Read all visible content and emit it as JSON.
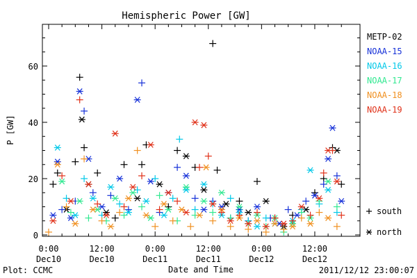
{
  "chart_data": {
    "type": "scatter",
    "title": "Hemispheric Power [GW]",
    "ylabel": "P [GW]",
    "xlabel": "Date and Time",
    "ylim": [
      0,
      75
    ],
    "yticks": [
      0,
      20,
      40,
      60
    ],
    "xlim": [
      0,
      68
    ],
    "x_units": "hours since 2011-12-10 00:00",
    "xticks": [
      {
        "x": 0,
        "time": "0:00",
        "date": "Dec10"
      },
      {
        "x": 12,
        "time": "12:00",
        "date": "Dec10"
      },
      {
        "x": 24,
        "time": "0:00",
        "date": "Dec11"
      },
      {
        "x": 36,
        "time": "12:00",
        "date": "Dec11"
      },
      {
        "x": 48,
        "time": "0:00",
        "date": "Dec12"
      },
      {
        "x": 60,
        "time": "12:00",
        "date": "Dec12"
      }
    ],
    "legend_position": "right",
    "marker_legend": [
      {
        "symbol": "+",
        "label": "south"
      },
      {
        "symbol": "*",
        "label": "north"
      }
    ],
    "series": [
      {
        "name": "METP-02",
        "color": "#000000",
        "points": [
          [
            1,
            18,
            "south"
          ],
          [
            2,
            22,
            "south"
          ],
          [
            4,
            9,
            "north"
          ],
          [
            6,
            26,
            "south"
          ],
          [
            7,
            56,
            "south"
          ],
          [
            7.5,
            41,
            "north"
          ],
          [
            8,
            31,
            "south"
          ],
          [
            9,
            18,
            "north"
          ],
          [
            11,
            22,
            "south"
          ],
          [
            13,
            8,
            "north"
          ],
          [
            15,
            6,
            "south"
          ],
          [
            17,
            25,
            "south"
          ],
          [
            20,
            13,
            "north"
          ],
          [
            21,
            25,
            "south"
          ],
          [
            22,
            32,
            "south"
          ],
          [
            25,
            18,
            "north"
          ],
          [
            27,
            10,
            "south"
          ],
          [
            29,
            30,
            "south"
          ],
          [
            31,
            28,
            "north"
          ],
          [
            33,
            24,
            "south"
          ],
          [
            35,
            16,
            "north"
          ],
          [
            37,
            68,
            "south"
          ],
          [
            38,
            23,
            "south"
          ],
          [
            40,
            11,
            "north"
          ],
          [
            43,
            12,
            "south"
          ],
          [
            45,
            8,
            "north"
          ],
          [
            47,
            19,
            "south"
          ],
          [
            49,
            12,
            "north"
          ],
          [
            51,
            6,
            "south"
          ],
          [
            53,
            3,
            "north"
          ],
          [
            55,
            7,
            "south"
          ],
          [
            58,
            9,
            "north"
          ],
          [
            60,
            15,
            "south"
          ],
          [
            62,
            20,
            "south"
          ],
          [
            64,
            31,
            "south"
          ],
          [
            65,
            30,
            "north"
          ],
          [
            66,
            18,
            "south"
          ]
        ]
      },
      {
        "name": "NOAA-15",
        "color": "#1530d8",
        "points": [
          [
            1,
            7,
            "north"
          ],
          [
            2,
            26,
            "north"
          ],
          [
            3,
            9,
            "south"
          ],
          [
            5,
            6,
            "north"
          ],
          [
            6,
            12,
            "south"
          ],
          [
            7,
            51,
            "north"
          ],
          [
            8,
            44,
            "south"
          ],
          [
            9,
            27,
            "north"
          ],
          [
            10,
            15,
            "south"
          ],
          [
            12,
            10,
            "north"
          ],
          [
            14,
            14,
            "south"
          ],
          [
            16,
            20,
            "north"
          ],
          [
            18,
            9,
            "south"
          ],
          [
            20,
            48,
            "north"
          ],
          [
            21,
            54,
            "south"
          ],
          [
            23,
            19,
            "north"
          ],
          [
            25,
            8,
            "south"
          ],
          [
            27,
            15,
            "north"
          ],
          [
            29,
            24,
            "south"
          ],
          [
            31,
            21,
            "north"
          ],
          [
            33,
            13,
            "south"
          ],
          [
            35,
            9,
            "north"
          ],
          [
            37,
            12,
            "south"
          ],
          [
            39,
            10,
            "north"
          ],
          [
            41,
            6,
            "south"
          ],
          [
            43,
            9,
            "north"
          ],
          [
            45,
            5,
            "south"
          ],
          [
            47,
            10,
            "north"
          ],
          [
            50,
            6,
            "south"
          ],
          [
            52,
            4,
            "north"
          ],
          [
            54,
            9,
            "south"
          ],
          [
            56,
            7,
            "north"
          ],
          [
            58,
            12,
            "south"
          ],
          [
            60,
            14,
            "north"
          ],
          [
            62,
            18,
            "south"
          ],
          [
            63,
            27,
            "north"
          ],
          [
            64,
            38,
            "north"
          ],
          [
            65,
            21,
            "south"
          ],
          [
            66,
            12,
            "north"
          ]
        ]
      },
      {
        "name": "NOAA-16",
        "color": "#00c8e8",
        "points": [
          [
            2,
            31,
            "north"
          ],
          [
            4,
            13,
            "south"
          ],
          [
            6,
            7,
            "north"
          ],
          [
            8,
            20,
            "south"
          ],
          [
            10,
            13,
            "north"
          ],
          [
            12,
            7,
            "south"
          ],
          [
            14,
            17,
            "north"
          ],
          [
            16,
            11,
            "south"
          ],
          [
            18,
            8,
            "north"
          ],
          [
            20,
            16,
            "south"
          ],
          [
            22,
            12,
            "north"
          ],
          [
            24,
            20,
            "south"
          ],
          [
            26,
            7,
            "north"
          ],
          [
            28,
            13,
            "south"
          ],
          [
            29.5,
            34,
            "south"
          ],
          [
            31,
            16,
            "north"
          ],
          [
            33,
            9,
            "south"
          ],
          [
            35,
            18,
            "north"
          ],
          [
            37,
            11,
            "south"
          ],
          [
            39,
            7,
            "north"
          ],
          [
            41,
            13,
            "south"
          ],
          [
            43,
            8,
            "north"
          ],
          [
            45,
            5,
            "south"
          ],
          [
            47,
            3,
            "north"
          ],
          [
            49,
            6,
            "south"
          ],
          [
            51,
            4,
            "north"
          ],
          [
            53,
            2,
            "south"
          ],
          [
            55,
            5,
            "north"
          ],
          [
            57,
            9,
            "south"
          ],
          [
            59,
            23,
            "north"
          ],
          [
            61,
            11,
            "south"
          ],
          [
            63,
            16,
            "north"
          ],
          [
            65,
            8,
            "south"
          ]
        ]
      },
      {
        "name": "NOAA-17",
        "color": "#30e890",
        "points": [
          [
            3,
            19,
            "north"
          ],
          [
            5,
            8,
            "south"
          ],
          [
            7,
            12,
            "north"
          ],
          [
            9,
            6,
            "south"
          ],
          [
            11,
            9,
            "north"
          ],
          [
            13,
            5,
            "south"
          ],
          [
            15,
            13,
            "north"
          ],
          [
            17,
            7,
            "south"
          ],
          [
            19,
            15,
            "north"
          ],
          [
            21,
            10,
            "south"
          ],
          [
            23,
            6,
            "north"
          ],
          [
            25,
            14,
            "south"
          ],
          [
            27,
            9,
            "north"
          ],
          [
            29,
            5,
            "south"
          ],
          [
            31,
            17,
            "north"
          ],
          [
            33,
            7,
            "south"
          ],
          [
            35,
            12,
            "north"
          ],
          [
            37,
            8,
            "south"
          ],
          [
            39,
            15,
            "north"
          ],
          [
            41,
            6,
            "south"
          ],
          [
            43,
            10,
            "north"
          ],
          [
            45,
            4,
            "south"
          ],
          [
            47,
            7,
            "north"
          ],
          [
            49,
            3,
            "south"
          ],
          [
            51,
            6,
            "north"
          ],
          [
            53,
            1,
            "south"
          ],
          [
            55,
            4,
            "north"
          ],
          [
            57,
            8,
            "south"
          ],
          [
            59,
            6,
            "north"
          ],
          [
            61,
            12,
            "south"
          ],
          [
            63,
            19,
            "north"
          ],
          [
            65,
            10,
            "south"
          ]
        ]
      },
      {
        "name": "NOAA-18",
        "color": "#f09020",
        "points": [
          [
            0,
            1,
            "south"
          ],
          [
            2,
            25,
            "north"
          ],
          [
            4,
            10,
            "south"
          ],
          [
            6,
            4,
            "north"
          ],
          [
            8,
            27,
            "south"
          ],
          [
            10,
            9,
            "north"
          ],
          [
            12,
            5,
            "south"
          ],
          [
            14,
            3,
            "north"
          ],
          [
            16,
            8,
            "south"
          ],
          [
            18,
            13,
            "north"
          ],
          [
            20,
            30,
            "south"
          ],
          [
            22,
            7,
            "north"
          ],
          [
            24,
            3,
            "south"
          ],
          [
            26,
            11,
            "north"
          ],
          [
            28,
            5,
            "south"
          ],
          [
            30,
            9,
            "north"
          ],
          [
            32,
            3,
            "south"
          ],
          [
            34,
            7,
            "north"
          ],
          [
            35.5,
            24,
            "north"
          ],
          [
            37,
            5,
            "south"
          ],
          [
            39,
            9,
            "north"
          ],
          [
            41,
            3,
            "south"
          ],
          [
            43,
            6,
            "north"
          ],
          [
            45,
            2,
            "south"
          ],
          [
            47,
            5,
            "north"
          ],
          [
            49,
            1,
            "south"
          ],
          [
            51,
            4,
            "north"
          ],
          [
            53,
            2,
            "south"
          ],
          [
            55,
            3,
            "north"
          ],
          [
            57,
            6,
            "south"
          ],
          [
            59,
            4,
            "north"
          ],
          [
            61,
            8,
            "south"
          ],
          [
            63,
            6,
            "north"
          ],
          [
            65,
            3,
            "south"
          ]
        ]
      },
      {
        "name": "NOAA-19",
        "color": "#e03018",
        "points": [
          [
            1,
            5,
            "north"
          ],
          [
            3,
            21,
            "south"
          ],
          [
            5,
            12,
            "north"
          ],
          [
            7,
            48,
            "south"
          ],
          [
            9,
            18,
            "north"
          ],
          [
            11,
            11,
            "south"
          ],
          [
            13,
            7,
            "north"
          ],
          [
            15,
            36,
            "north"
          ],
          [
            17,
            10,
            "south"
          ],
          [
            19,
            17,
            "north"
          ],
          [
            21,
            21,
            "south"
          ],
          [
            23,
            32,
            "north"
          ],
          [
            25,
            9,
            "south"
          ],
          [
            27,
            15,
            "north"
          ],
          [
            29,
            12,
            "south"
          ],
          [
            31,
            8,
            "north"
          ],
          [
            33,
            40,
            "north"
          ],
          [
            34,
            24,
            "south"
          ],
          [
            35,
            39,
            "north"
          ],
          [
            36,
            28,
            "south"
          ],
          [
            37,
            11,
            "north"
          ],
          [
            39,
            8,
            "south"
          ],
          [
            41,
            5,
            "north"
          ],
          [
            43,
            7,
            "south"
          ],
          [
            45,
            4,
            "north"
          ],
          [
            47,
            8,
            "south"
          ],
          [
            49,
            3,
            "north"
          ],
          [
            51,
            6,
            "south"
          ],
          [
            53,
            4,
            "north"
          ],
          [
            55,
            5,
            "south"
          ],
          [
            57,
            10,
            "north"
          ],
          [
            59,
            7,
            "south"
          ],
          [
            61,
            13,
            "north"
          ],
          [
            62,
            22,
            "south"
          ],
          [
            63,
            30,
            "north"
          ],
          [
            64,
            30,
            "south"
          ],
          [
            65,
            19,
            "north"
          ],
          [
            66,
            7,
            "south"
          ]
        ]
      }
    ]
  },
  "footer": {
    "plot_credit": "Plot: CCMC",
    "timestamp": "2011/12/12 23:00:07"
  }
}
